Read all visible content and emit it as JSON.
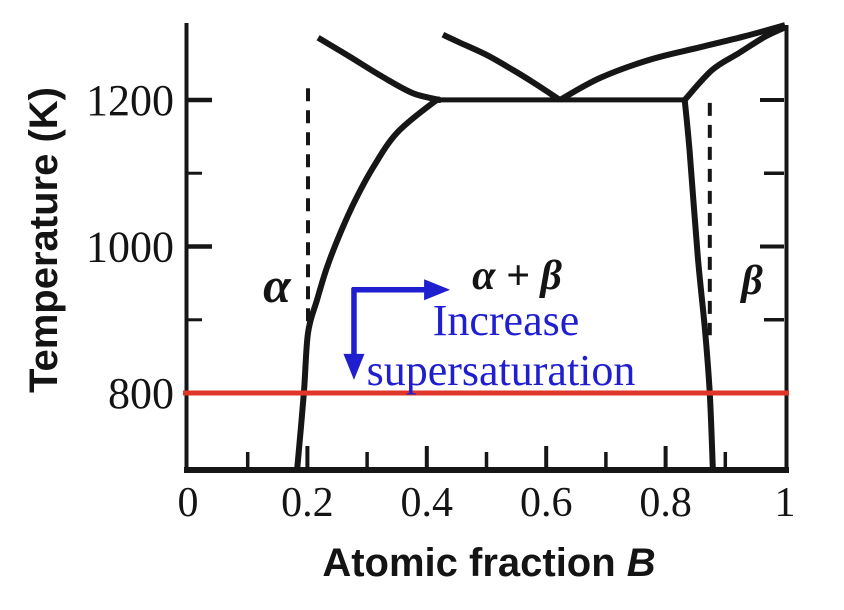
{
  "figure": {
    "background": "#ffffff",
    "ink_color": "#161616",
    "red_color": "#e1352a",
    "blue_color": "#1f1fd0"
  },
  "labels": {
    "ylabel": "Temperature (K)",
    "xlabel_main": "Atomic fraction",
    "xlabel_symbol": "B",
    "region_alpha": "α",
    "region_alpha_beta": "α + β",
    "region_beta": "β",
    "note_line1": "Increase",
    "note_line2": "supersaturation"
  },
  "chart_data": {
    "type": "line",
    "title": "",
    "xlabel": "Atomic fraction B",
    "ylabel": "Temperature (K)",
    "xlim": [
      0,
      1
    ],
    "ylim": [
      695,
      1305
    ],
    "grid": false,
    "legend_position": "none",
    "x_ticks_labeled": [
      {
        "value": 0,
        "label": "0"
      },
      {
        "value": 0.2,
        "label": "0.2"
      },
      {
        "value": 0.4,
        "label": "0.4"
      },
      {
        "value": 0.6,
        "label": "0.6"
      },
      {
        "value": 0.8,
        "label": "0.8"
      },
      {
        "value": 1,
        "label": "1"
      }
    ],
    "x_ticks_minor": [
      0.1,
      0.2,
      0.3,
      0.4,
      0.5,
      0.6,
      0.7,
      0.8,
      0.9
    ],
    "y_ticks_labeled": [
      {
        "value": 800,
        "label": "800"
      },
      {
        "value": 1000,
        "label": "1000"
      },
      {
        "value": 1200,
        "label": "1200"
      }
    ],
    "y_ticks_minor": [
      900,
      1100
    ],
    "eutectic_point": {
      "x": 0.623,
      "t": 1200
    },
    "series": [
      {
        "name": "alpha-solvus",
        "style": "solid",
        "points": [
          [
            0.183,
            698
          ],
          [
            0.194,
            799
          ],
          [
            0.201,
            882
          ],
          [
            0.216,
            927
          ],
          [
            0.233,
            972
          ],
          [
            0.255,
            1018
          ],
          [
            0.28,
            1063
          ],
          [
            0.31,
            1108
          ],
          [
            0.35,
            1155
          ],
          [
            0.41,
            1196
          ],
          [
            0.422,
            1200
          ]
        ]
      },
      {
        "name": "eutectic-isotherm",
        "style": "solid",
        "points": [
          [
            0.422,
            1200
          ],
          [
            0.832,
            1200
          ]
        ]
      },
      {
        "name": "alpha-solidus",
        "style": "solid",
        "points": [
          [
            0.218,
            1285
          ],
          [
            0.271,
            1259
          ],
          [
            0.327,
            1231
          ],
          [
            0.377,
            1209
          ],
          [
            0.422,
            1200
          ]
        ]
      },
      {
        "name": "liquidus-left",
        "style": "solid",
        "points": [
          [
            0.427,
            1289
          ],
          [
            0.456,
            1278
          ],
          [
            0.501,
            1261
          ],
          [
            0.544,
            1241
          ],
          [
            0.578,
            1224
          ],
          [
            0.623,
            1200
          ]
        ]
      },
      {
        "name": "liquidus-right",
        "style": "solid",
        "points": [
          [
            0.623,
            1200
          ],
          [
            0.69,
            1230
          ],
          [
            0.774,
            1255
          ],
          [
            0.858,
            1272
          ],
          [
            0.933,
            1287
          ],
          [
            1.0,
            1302
          ]
        ]
      },
      {
        "name": "beta-solidus",
        "style": "solid",
        "points": [
          [
            0.832,
            1200
          ],
          [
            0.878,
            1241
          ],
          [
            0.923,
            1264
          ],
          [
            0.966,
            1286
          ],
          [
            1.0,
            1299
          ]
        ]
      },
      {
        "name": "beta-solvus",
        "style": "solid",
        "points": [
          [
            0.832,
            1200
          ],
          [
            0.84,
            1132
          ],
          [
            0.854,
            986
          ],
          [
            0.866,
            886
          ],
          [
            0.874,
            799
          ],
          [
            0.879,
            698
          ]
        ]
      },
      {
        "name": "alpha-composition-dashed",
        "style": "dashed",
        "points": [
          [
            0.201,
            1216
          ],
          [
            0.201,
            872
          ]
        ]
      },
      {
        "name": "beta-composition-dashed",
        "style": "dashed",
        "points": [
          [
            0.874,
            1196
          ],
          [
            0.874,
            879
          ]
        ]
      }
    ],
    "reference_line": {
      "name": "isotherm-800K",
      "temperature": 800,
      "color": "#e1352a"
    },
    "annotations": {
      "regions": [
        {
          "label": "α",
          "x": 0.149,
          "t": 949
        },
        {
          "label": "α + β",
          "x": 0.551,
          "t": 962
        },
        {
          "label": "β",
          "x": 0.944,
          "t": 952
        }
      ],
      "note": {
        "line1": "Increase",
        "line2": "supersaturation",
        "color": "#1f1fd0"
      },
      "arrows": {
        "color": "#1f1fd0",
        "origin": [
          0.278,
          941
        ],
        "right_tip": [
          0.439,
          941
        ],
        "down_tip": [
          0.278,
          818
        ]
      }
    }
  }
}
